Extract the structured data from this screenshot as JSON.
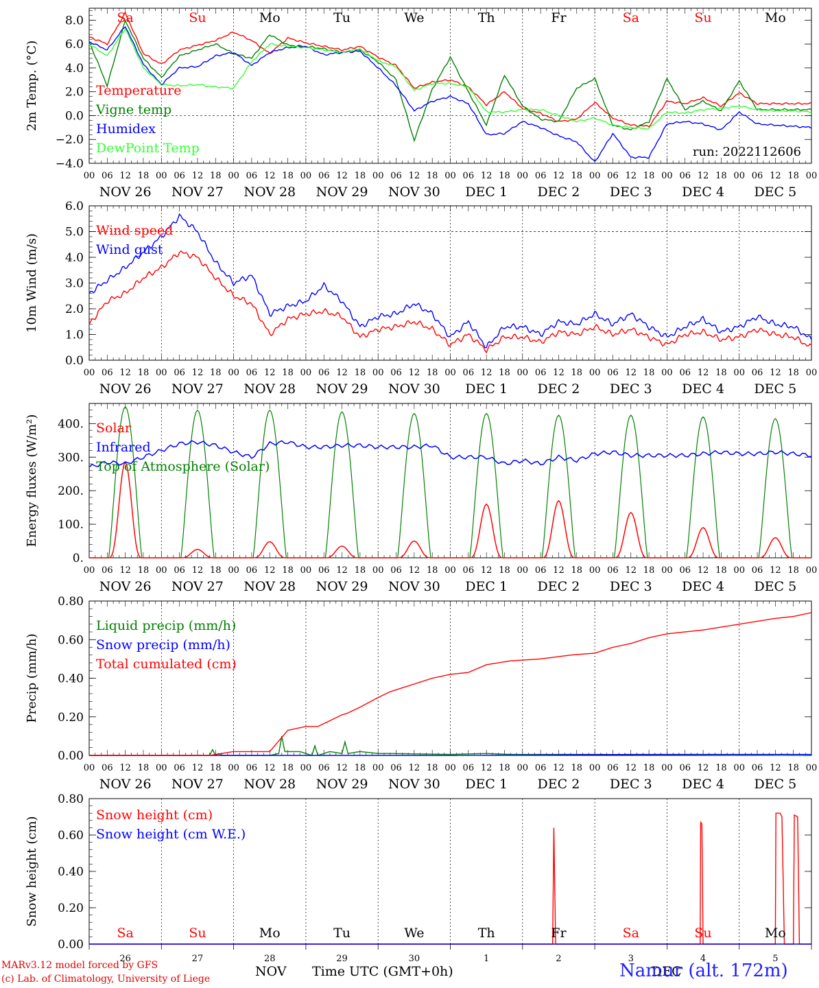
{
  "footer": {
    "credit_line_1": "MARv3.12 model forced by GFS",
    "credit_line_2": "(c) Lab. of Climatology, University of Liege",
    "month": "NOV",
    "month2": "DEC",
    "xlabel": "Time UTC (GMT+0h)",
    "station": "Namur (alt. 172m)"
  },
  "colors": {
    "red": "#ff0000",
    "green": "#008000",
    "blue": "#0000ff",
    "lightgreen": "#33ff33"
  },
  "chart_data": [
    {
      "type": "line",
      "ylabel": "2m Temp. (°C)",
      "ylim": [
        -4,
        9
      ],
      "yticks": [
        "8.0",
        "6.0",
        "4.0",
        "2.0",
        "0.0",
        "−2.0",
        "−4.0"
      ],
      "ytick_values": [
        8,
        6,
        4,
        2,
        0,
        -2,
        -4
      ],
      "ref_line": 0,
      "weekdays": [
        "Sa",
        "Su",
        "Mo",
        "Tu",
        "We",
        "Th",
        "Fr",
        "Sa",
        "Su",
        "Mo"
      ],
      "weekday_colors": [
        "#ff0000",
        "#ff0000",
        "#000000",
        "#000000",
        "#000000",
        "#000000",
        "#000000",
        "#ff0000",
        "#ff0000",
        "#000000"
      ],
      "x_hour_labels": [
        "00",
        "06",
        "12",
        "18"
      ],
      "x_day_labels": [
        "NOV 26",
        "NOV 27",
        "NOV 28",
        "NOV 29",
        "NOV 30",
        "DEC  1",
        "DEC  2",
        "DEC  3",
        "DEC  4",
        "DEC  5"
      ],
      "annotation": "run: 2022112606",
      "x": [
        0,
        6,
        12,
        18,
        24,
        30,
        36,
        42,
        48,
        54,
        60,
        66,
        72,
        78,
        84,
        90,
        96,
        102,
        108,
        114,
        120,
        126,
        132,
        138,
        144,
        150,
        156,
        162,
        168,
        174,
        180,
        186,
        192,
        198,
        204,
        210,
        216,
        222,
        228,
        234,
        240
      ],
      "series": [
        {
          "name": "Temperature",
          "color": "#ff0000",
          "values": [
            6.6,
            6.0,
            8.6,
            5.2,
            4.3,
            5.5,
            5.9,
            6.3,
            7.0,
            6.3,
            5.2,
            6.5,
            6.1,
            5.8,
            5.5,
            5.8,
            4.9,
            4.2,
            2.3,
            2.8,
            3.0,
            2.4,
            0.9,
            2.0,
            0.6,
            0.2,
            -0.5,
            -0.3,
            1.1,
            -0.2,
            -0.8,
            -0.9,
            1.2,
            1.0,
            1.5,
            0.8,
            1.9,
            1.0,
            1.0,
            1.0,
            1.0
          ]
        },
        {
          "name": "Vigne temp",
          "color": "#008000",
          "values": [
            6.2,
            2.5,
            8.0,
            4.8,
            3.2,
            5.0,
            5.5,
            6.0,
            5.2,
            4.8,
            6.8,
            5.9,
            5.8,
            5.6,
            5.3,
            5.5,
            4.5,
            3.0,
            -2.1,
            2.2,
            4.9,
            2.0,
            -0.8,
            3.4,
            0.8,
            -0.3,
            -0.5,
            2.3,
            3.1,
            -0.8,
            -1.2,
            -0.5,
            3.1,
            0.5,
            1.2,
            0.4,
            2.9,
            0.5,
            0.5,
            0.5,
            0.5
          ]
        },
        {
          "name": "Humidex",
          "color": "#0000ff",
          "values": [
            6.2,
            5.5,
            7.5,
            4.3,
            2.6,
            4.0,
            4.1,
            5.0,
            5.3,
            4.2,
            5.3,
            5.7,
            5.8,
            5.1,
            5.3,
            5.4,
            4.0,
            2.5,
            0.4,
            1.2,
            1.6,
            1.0,
            -1.6,
            -1.5,
            -0.5,
            -1.0,
            -1.7,
            -2.2,
            -3.9,
            -1.5,
            -3.5,
            -3.5,
            -0.7,
            -0.5,
            -0.7,
            -1.2,
            0.3,
            -0.7,
            -0.8,
            -0.9,
            -1.0
          ]
        },
        {
          "name": "DewPoint Temp",
          "color": "#33ff33",
          "values": [
            6.0,
            5.0,
            7.3,
            4.0,
            2.6,
            2.5,
            2.6,
            2.4,
            2.3,
            4.5,
            6.0,
            5.8,
            5.7,
            5.5,
            5.3,
            5.6,
            4.6,
            4.1,
            2.1,
            2.7,
            2.7,
            2.4,
            0.3,
            0.3,
            0.5,
            0.5,
            0.0,
            -0.5,
            -0.2,
            -0.8,
            -1.0,
            -1.1,
            0.3,
            0.2,
            0.5,
            0.6,
            0.8,
            0.5,
            0.4,
            0.4,
            0.3
          ]
        }
      ]
    },
    {
      "type": "line",
      "ylabel": "10m Wind (m/s)",
      "ylim": [
        0,
        6
      ],
      "yticks": [
        "6.0",
        "5.0",
        "4.0",
        "3.0",
        "2.0",
        "1.0",
        "0.0"
      ],
      "ytick_values": [
        6,
        5,
        4,
        3,
        2,
        1,
        0
      ],
      "ref_line": 5,
      "x": [
        0,
        6,
        12,
        18,
        24,
        30,
        36,
        42,
        48,
        54,
        60,
        66,
        72,
        78,
        84,
        90,
        96,
        102,
        108,
        114,
        120,
        126,
        132,
        138,
        144,
        150,
        156,
        162,
        168,
        174,
        180,
        186,
        192,
        198,
        204,
        210,
        216,
        222,
        228,
        234,
        240
      ],
      "series": [
        {
          "name": "Wind speed",
          "color": "#ff0000",
          "values": [
            1.4,
            2.3,
            2.6,
            3.2,
            3.6,
            4.2,
            4.0,
            3.2,
            2.5,
            2.2,
            1.0,
            1.6,
            1.8,
            1.9,
            1.7,
            0.9,
            1.2,
            1.3,
            1.5,
            1.2,
            0.6,
            1.0,
            0.4,
            0.9,
            0.9,
            0.7,
            1.1,
            1.0,
            1.3,
            1.0,
            1.2,
            0.9,
            0.6,
            1.0,
            1.1,
            0.8,
            0.9,
            1.2,
            1.0,
            0.9,
            0.5
          ]
        },
        {
          "name": "Wind gust",
          "color": "#0000ff",
          "values": [
            2.6,
            3.1,
            3.6,
            4.2,
            4.8,
            5.6,
            5.0,
            3.8,
            3.0,
            3.3,
            1.8,
            2.1,
            2.3,
            2.9,
            2.3,
            1.3,
            1.7,
            1.8,
            2.2,
            1.8,
            0.9,
            1.5,
            0.5,
            1.3,
            1.3,
            1.0,
            1.5,
            1.4,
            1.8,
            1.4,
            1.8,
            1.3,
            0.9,
            1.3,
            1.6,
            1.1,
            1.3,
            1.7,
            1.4,
            1.3,
            0.8
          ]
        }
      ]
    },
    {
      "type": "line",
      "ylabel": "Energy fluxes (W/m²)",
      "ylim": [
        0,
        460
      ],
      "yticks": [
        "400.",
        "300.",
        "200.",
        "100.",
        "0."
      ],
      "ytick_values": [
        400,
        300,
        200,
        100,
        0
      ],
      "toa_peaks": [
        450,
        440,
        440,
        435,
        430,
        430,
        425,
        425,
        420,
        415
      ],
      "solar_peaks": [
        285,
        25,
        48,
        35,
        50,
        160,
        170,
        135,
        90,
        60
      ],
      "series": [
        {
          "name": "Solar",
          "color": "#ff0000"
        },
        {
          "name": "Infrared",
          "color": "#0000ff",
          "x": [
            0,
            6,
            12,
            18,
            24,
            30,
            36,
            42,
            48,
            54,
            60,
            66,
            72,
            78,
            84,
            90,
            96,
            102,
            108,
            114,
            120,
            126,
            132,
            138,
            144,
            150,
            156,
            162,
            168,
            174,
            180,
            186,
            192,
            198,
            204,
            210,
            216,
            222,
            228,
            234,
            240
          ],
          "values": [
            270,
            285,
            280,
            300,
            320,
            340,
            345,
            335,
            315,
            300,
            340,
            345,
            330,
            330,
            335,
            335,
            330,
            330,
            330,
            335,
            300,
            300,
            300,
            280,
            290,
            280,
            300,
            290,
            310,
            315,
            305,
            305,
            305,
            305,
            310,
            315,
            310,
            310,
            315,
            310,
            305
          ]
        },
        {
          "name": "Top of Atmosphere (Solar)",
          "color": "#008000"
        }
      ]
    },
    {
      "type": "line",
      "ylabel": "Precip (mm/h)",
      "ylim": [
        0,
        0.8
      ],
      "yticks": [
        "0.80",
        "0.60",
        "0.40",
        "0.20",
        "0.00"
      ],
      "ytick_values": [
        0.8,
        0.6,
        0.4,
        0.2,
        0
      ],
      "series": [
        {
          "name": "Liquid precip (mm/h)",
          "color": "#008000",
          "x": [
            0,
            40,
            41,
            42,
            43,
            44,
            60,
            63,
            64,
            65,
            70,
            74,
            75,
            76,
            80,
            84,
            85,
            86,
            90,
            96,
            100,
            120,
            132,
            140,
            168,
            240
          ],
          "values": [
            0,
            0,
            0.03,
            0,
            0.01,
            0,
            0,
            0.01,
            0.1,
            0.02,
            0.02,
            0,
            0.05,
            0,
            0.02,
            0.01,
            0.07,
            0.01,
            0.02,
            0.01,
            0.01,
            0.005,
            0.01,
            0.005,
            0.005,
            0
          ]
        },
        {
          "name": "Snow precip (mm/h)",
          "color": "#0000ff",
          "x": [
            0,
            120,
            180,
            240
          ],
          "values": [
            0,
            0,
            0.005,
            0.005
          ]
        },
        {
          "name": "Total cumulated (cm)",
          "color": "#ff0000",
          "x": [
            0,
            40,
            48,
            60,
            66,
            72,
            76,
            80,
            84,
            86,
            90,
            96,
            100,
            108,
            114,
            120,
            126,
            132,
            140,
            150,
            160,
            168,
            174,
            180,
            186,
            192,
            198,
            204,
            212,
            220,
            228,
            234,
            240
          ],
          "values": [
            0,
            0,
            0.02,
            0.02,
            0.13,
            0.15,
            0.15,
            0.18,
            0.21,
            0.22,
            0.25,
            0.3,
            0.33,
            0.37,
            0.4,
            0.42,
            0.43,
            0.47,
            0.49,
            0.5,
            0.52,
            0.53,
            0.56,
            0.58,
            0.61,
            0.63,
            0.64,
            0.65,
            0.67,
            0.69,
            0.71,
            0.72,
            0.74
          ]
        }
      ]
    },
    {
      "type": "line",
      "ylabel": "Snow height (cm)",
      "ylim": [
        0,
        0.8
      ],
      "yticks": [
        "0.80",
        "0.60",
        "0.40",
        "0.20",
        "0.00"
      ],
      "ytick_values": [
        0.8,
        0.6,
        0.4,
        0.2,
        0
      ],
      "x_day_numbers": [
        "26",
        "27",
        "28",
        "29",
        "30",
        "1",
        "2",
        "3",
        "4",
        "5"
      ],
      "series": [
        {
          "name": "Snow height (cm)",
          "color": "#ff0000",
          "x": [
            0,
            154,
            154.4,
            155,
            203,
            203.2,
            203.6,
            204,
            205,
            228,
            228.2,
            229.6,
            230.2,
            231,
            234,
            234.3,
            235.4,
            236,
            240
          ],
          "values": [
            0,
            0,
            0.64,
            0,
            0,
            0.67,
            0.66,
            0,
            0,
            0,
            0.72,
            0.72,
            0.7,
            0,
            0,
            0.71,
            0.7,
            0,
            0
          ]
        },
        {
          "name": "Snow height (cm W.E.)",
          "color": "#0000ff",
          "x": [
            0,
            240
          ],
          "values": [
            0,
            0
          ]
        }
      ]
    }
  ]
}
